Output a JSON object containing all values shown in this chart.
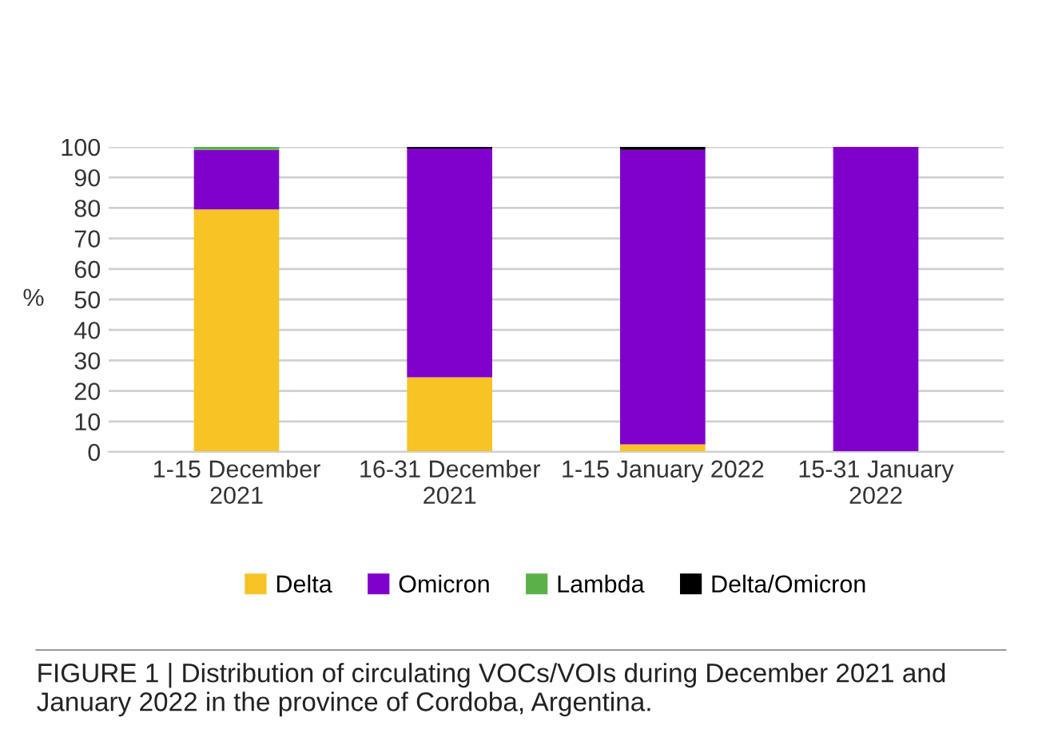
{
  "chart_data": {
    "type": "bar",
    "stacked": true,
    "ylabel": "%",
    "categories": [
      "1-15 December\n2021",
      "16-31 December\n2021",
      "1-15 January 2022",
      "15-31 January\n2022"
    ],
    "series": [
      {
        "name": "Delta",
        "color": "#f7c325",
        "values": [
          79.5,
          24.5,
          2.5,
          0
        ]
      },
      {
        "name": "Omicron",
        "color": "#8000cc",
        "values": [
          19.5,
          75,
          96.5,
          100
        ]
      },
      {
        "name": "Lambda",
        "color": "#5cb04a",
        "values": [
          1,
          0,
          0,
          0
        ]
      },
      {
        "name": "Delta/Omicron",
        "color": "#000000",
        "values": [
          0,
          0.5,
          1,
          0
        ]
      }
    ],
    "ylim": [
      0,
      100
    ],
    "yticks": [
      0,
      10,
      20,
      30,
      40,
      50,
      60,
      70,
      80,
      90,
      100
    ],
    "grid": "y",
    "legend": "bottom",
    "annotations": [
      "FIGURE 1 | Distribution of circulating VOCs/VOIs during December 2021 and January 2022 in the province of Cordoba, Argentina."
    ]
  }
}
